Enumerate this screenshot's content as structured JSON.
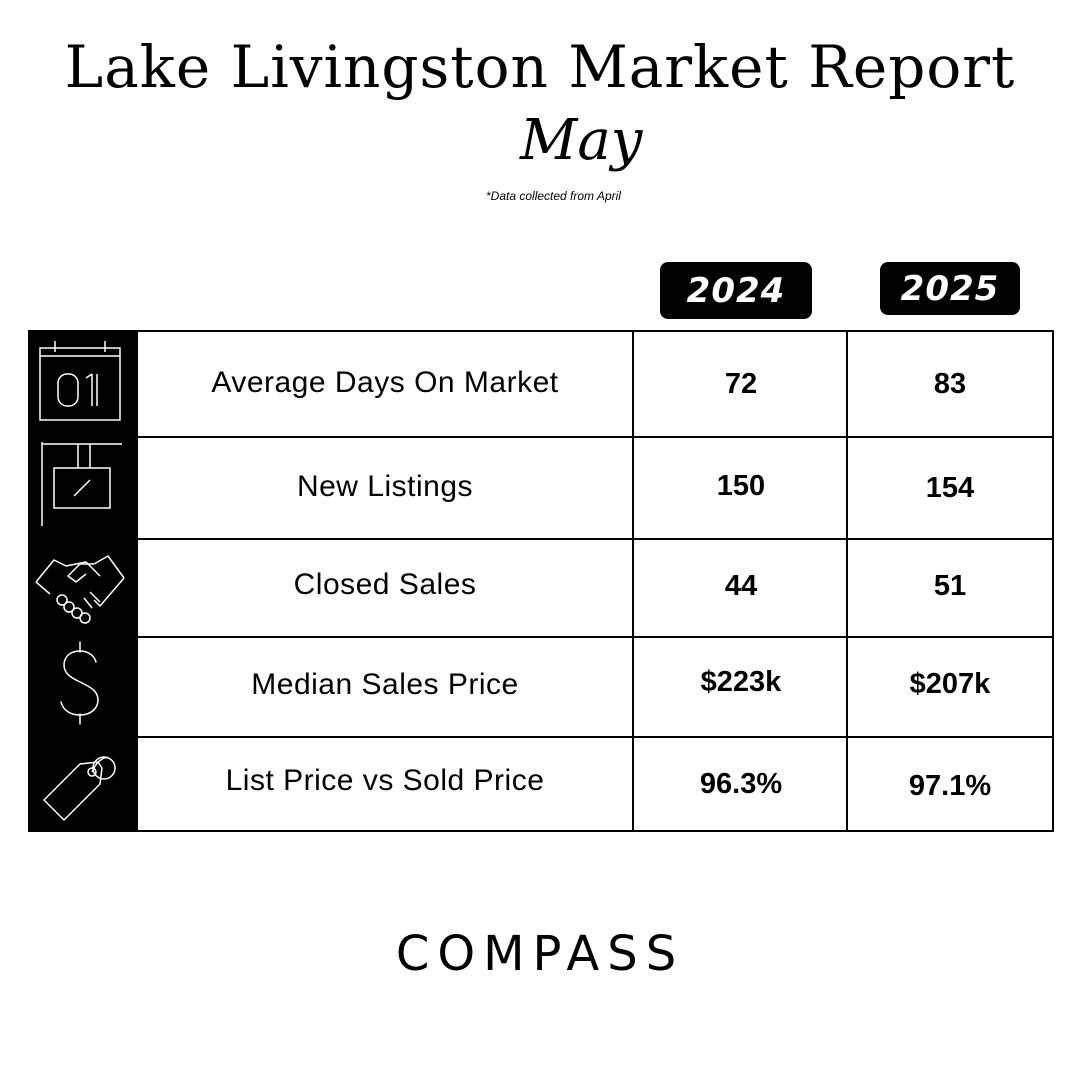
{
  "header": {
    "title": "Lake Livingston Market Report",
    "month": "May",
    "note": "*Data collected from April"
  },
  "columns": {
    "year_a": "2024",
    "year_b": "2025"
  },
  "rows": [
    {
      "icon": "calendar-icon",
      "label": "Average Days On Market",
      "v2024": "72",
      "v2025": "83"
    },
    {
      "icon": "hanging-sign-icon",
      "label": "New Listings",
      "v2024": "150",
      "v2025": "154"
    },
    {
      "icon": "handshake-icon",
      "label": "Closed Sales",
      "v2024": "44",
      "v2025": "51"
    },
    {
      "icon": "dollar-icon",
      "label": "Median Sales Price",
      "v2024": "$223k",
      "v2025": "$207k"
    },
    {
      "icon": "price-tag-icon",
      "label": "List Price vs Sold Price",
      "v2024": "96.3%",
      "v2025": "97.1%"
    }
  ],
  "brand": {
    "logo": "COMPASS"
  },
  "colors": {
    "primary": "#000000",
    "background": "#ffffff"
  }
}
